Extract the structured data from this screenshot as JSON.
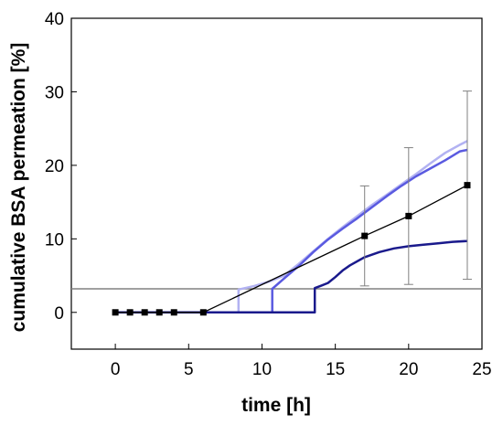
{
  "chart_data": {
    "type": "line",
    "xlabel": "time [h]",
    "ylabel": "cumulative BSA permeation [%]",
    "xlim": [
      -3,
      25
    ],
    "ylim": [
      -5,
      40
    ],
    "xticks": [
      0,
      5,
      10,
      15,
      20,
      25
    ],
    "yticks": [
      0,
      10,
      20,
      30,
      40
    ],
    "grid": false,
    "legend": "none",
    "reference_line": {
      "y": 3.2,
      "color": "#808080"
    },
    "mean_series": {
      "color": "#000000",
      "x": [
        0,
        1,
        2,
        3,
        4,
        6,
        17,
        20,
        24
      ],
      "y": [
        0,
        0,
        0,
        0,
        0,
        0,
        10.4,
        13.1,
        17.3
      ],
      "error": [
        0,
        0,
        0,
        0,
        0,
        0,
        6.8,
        9.3,
        12.8
      ]
    },
    "series": [
      {
        "color": "#b2b2f2",
        "x": [
          0,
          8.4,
          8.4,
          9.5,
          10.5,
          11.5,
          12.5,
          13.5,
          14.5,
          15.5,
          16.5,
          17.5,
          18.5,
          19.5,
          20.5,
          21.5,
          22.5,
          23.5,
          24.0
        ],
        "y": [
          0,
          0,
          3.1,
          3.6,
          4.2,
          5.0,
          6.6,
          8.3,
          10.0,
          11.6,
          13.1,
          14.6,
          16.0,
          17.4,
          18.8,
          20.3,
          21.7,
          22.8,
          23.3
        ]
      },
      {
        "color": "#5a5ae0",
        "x": [
          0,
          10.7,
          10.7,
          11.5,
          12.5,
          13.5,
          14.5,
          15.5,
          16.5,
          17.5,
          18.5,
          19.5,
          20.5,
          21.5,
          22.5,
          23.5,
          24.0
        ],
        "y": [
          0,
          0,
          3.2,
          4.6,
          6.3,
          8.2,
          9.9,
          11.4,
          12.8,
          14.3,
          15.8,
          17.2,
          18.5,
          19.6,
          20.7,
          21.9,
          22.1
        ]
      },
      {
        "color": "#1a1a8c",
        "x": [
          0,
          13.6,
          13.6,
          14.0,
          14.5,
          15.0,
          15.5,
          16.0,
          17.0,
          18.0,
          19.0,
          20.0,
          21.0,
          22.0,
          23.0,
          24.0
        ],
        "y": [
          0,
          0,
          3.3,
          3.6,
          4.0,
          4.8,
          5.7,
          6.4,
          7.5,
          8.2,
          8.7,
          9.0,
          9.2,
          9.4,
          9.6,
          9.7
        ]
      }
    ]
  }
}
